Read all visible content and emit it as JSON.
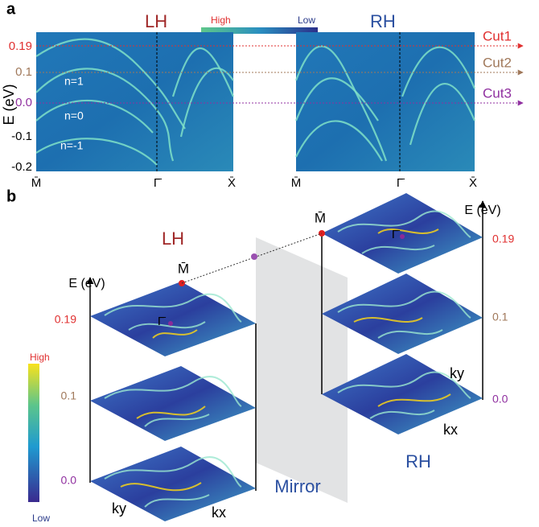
{
  "panel_a": {
    "label": "a",
    "left_title": "LH",
    "right_title": "RH",
    "colorbar_high": "High",
    "colorbar_low": "Low",
    "y_axis_label": "E (eV)",
    "y_ticks": [
      "0.19",
      "0.1",
      "0.0",
      "-0.1",
      "-0.2"
    ],
    "cuts": [
      "Cut1",
      "Cut2",
      "Cut3"
    ],
    "band_labels": [
      "n=1",
      "n=0",
      "n=-1"
    ],
    "x_labels_left": [
      "M̄",
      "Γ̄",
      "X̄"
    ],
    "x_labels_right": [
      "M̄",
      "Γ̄",
      "X̄"
    ]
  },
  "panel_b": {
    "label": "b",
    "left_title": "LH",
    "right_title": "RH",
    "mirror_label": "Mirror",
    "left_axis_label": "E (eV)",
    "right_axis_label": "E (eV)",
    "left_energies": [
      "0.19",
      "0.1",
      "0.0"
    ],
    "right_energies": [
      "0.19",
      "0.1",
      "0.0"
    ],
    "left_m": "M̄",
    "right_m": "M̄",
    "left_gamma": "Γ̄",
    "right_gamma": "Γ̄",
    "colorbar_high": "High",
    "colorbar_low": "Low",
    "left_ky": "ky",
    "left_kx": "kx",
    "right_ky": "ky",
    "right_kx": "kx"
  }
}
